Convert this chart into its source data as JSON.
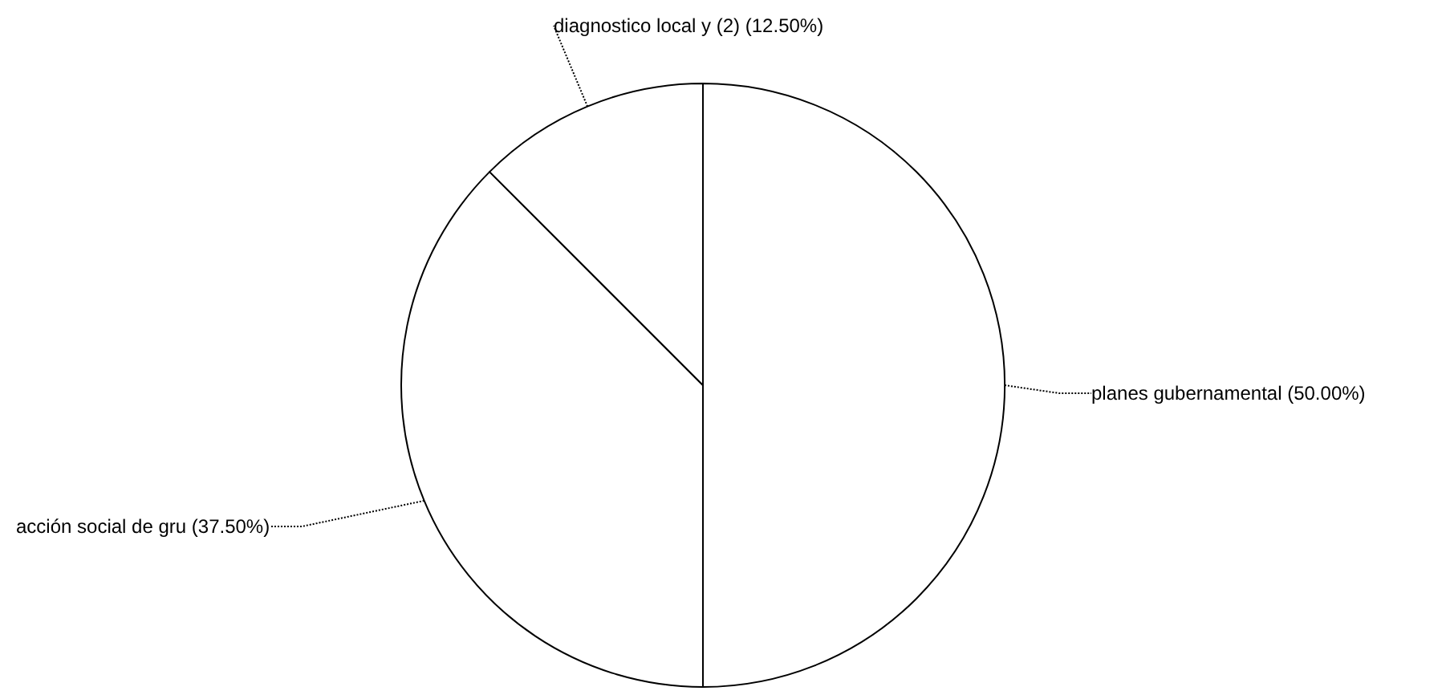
{
  "chart_data": {
    "type": "pie",
    "categories": [
      "planes gubernamental",
      "acción social de gru",
      "diagnostico local y (2)"
    ],
    "values": [
      50,
      37.5,
      12.5
    ],
    "colors": [
      "#ffffff",
      "#ffffff",
      "#ffffff"
    ],
    "value_labels": [
      "(50.00%)",
      "(37.50%)",
      "(12.50%)"
    ]
  }
}
